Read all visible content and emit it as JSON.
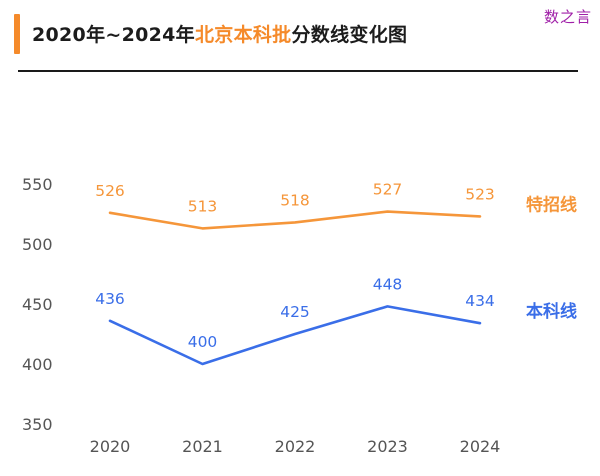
{
  "header": {
    "title_prefix": "2020年~2024年",
    "title_highlight": "北京本科批",
    "title_suffix": "分数线变化图",
    "watermark": "数之言"
  },
  "chart_data": {
    "type": "line",
    "categories": [
      "2020",
      "2021",
      "2022",
      "2023",
      "2024"
    ],
    "y_ticks": [
      350,
      400,
      450,
      500,
      550
    ],
    "ylim": [
      350,
      550
    ],
    "grid": false,
    "series": [
      {
        "name": "特招线",
        "values": [
          526,
          513,
          518,
          527,
          523
        ],
        "color": "#f5963a",
        "value_labels": [
          "526",
          "513",
          "518",
          "527",
          "523"
        ]
      },
      {
        "name": "本科线",
        "values": [
          436,
          400,
          425,
          448,
          434
        ],
        "color": "#3a6ee8",
        "value_labels": [
          "436",
          "400",
          "425",
          "448",
          "434"
        ]
      }
    ],
    "legend_placement": "right-of-lines"
  }
}
